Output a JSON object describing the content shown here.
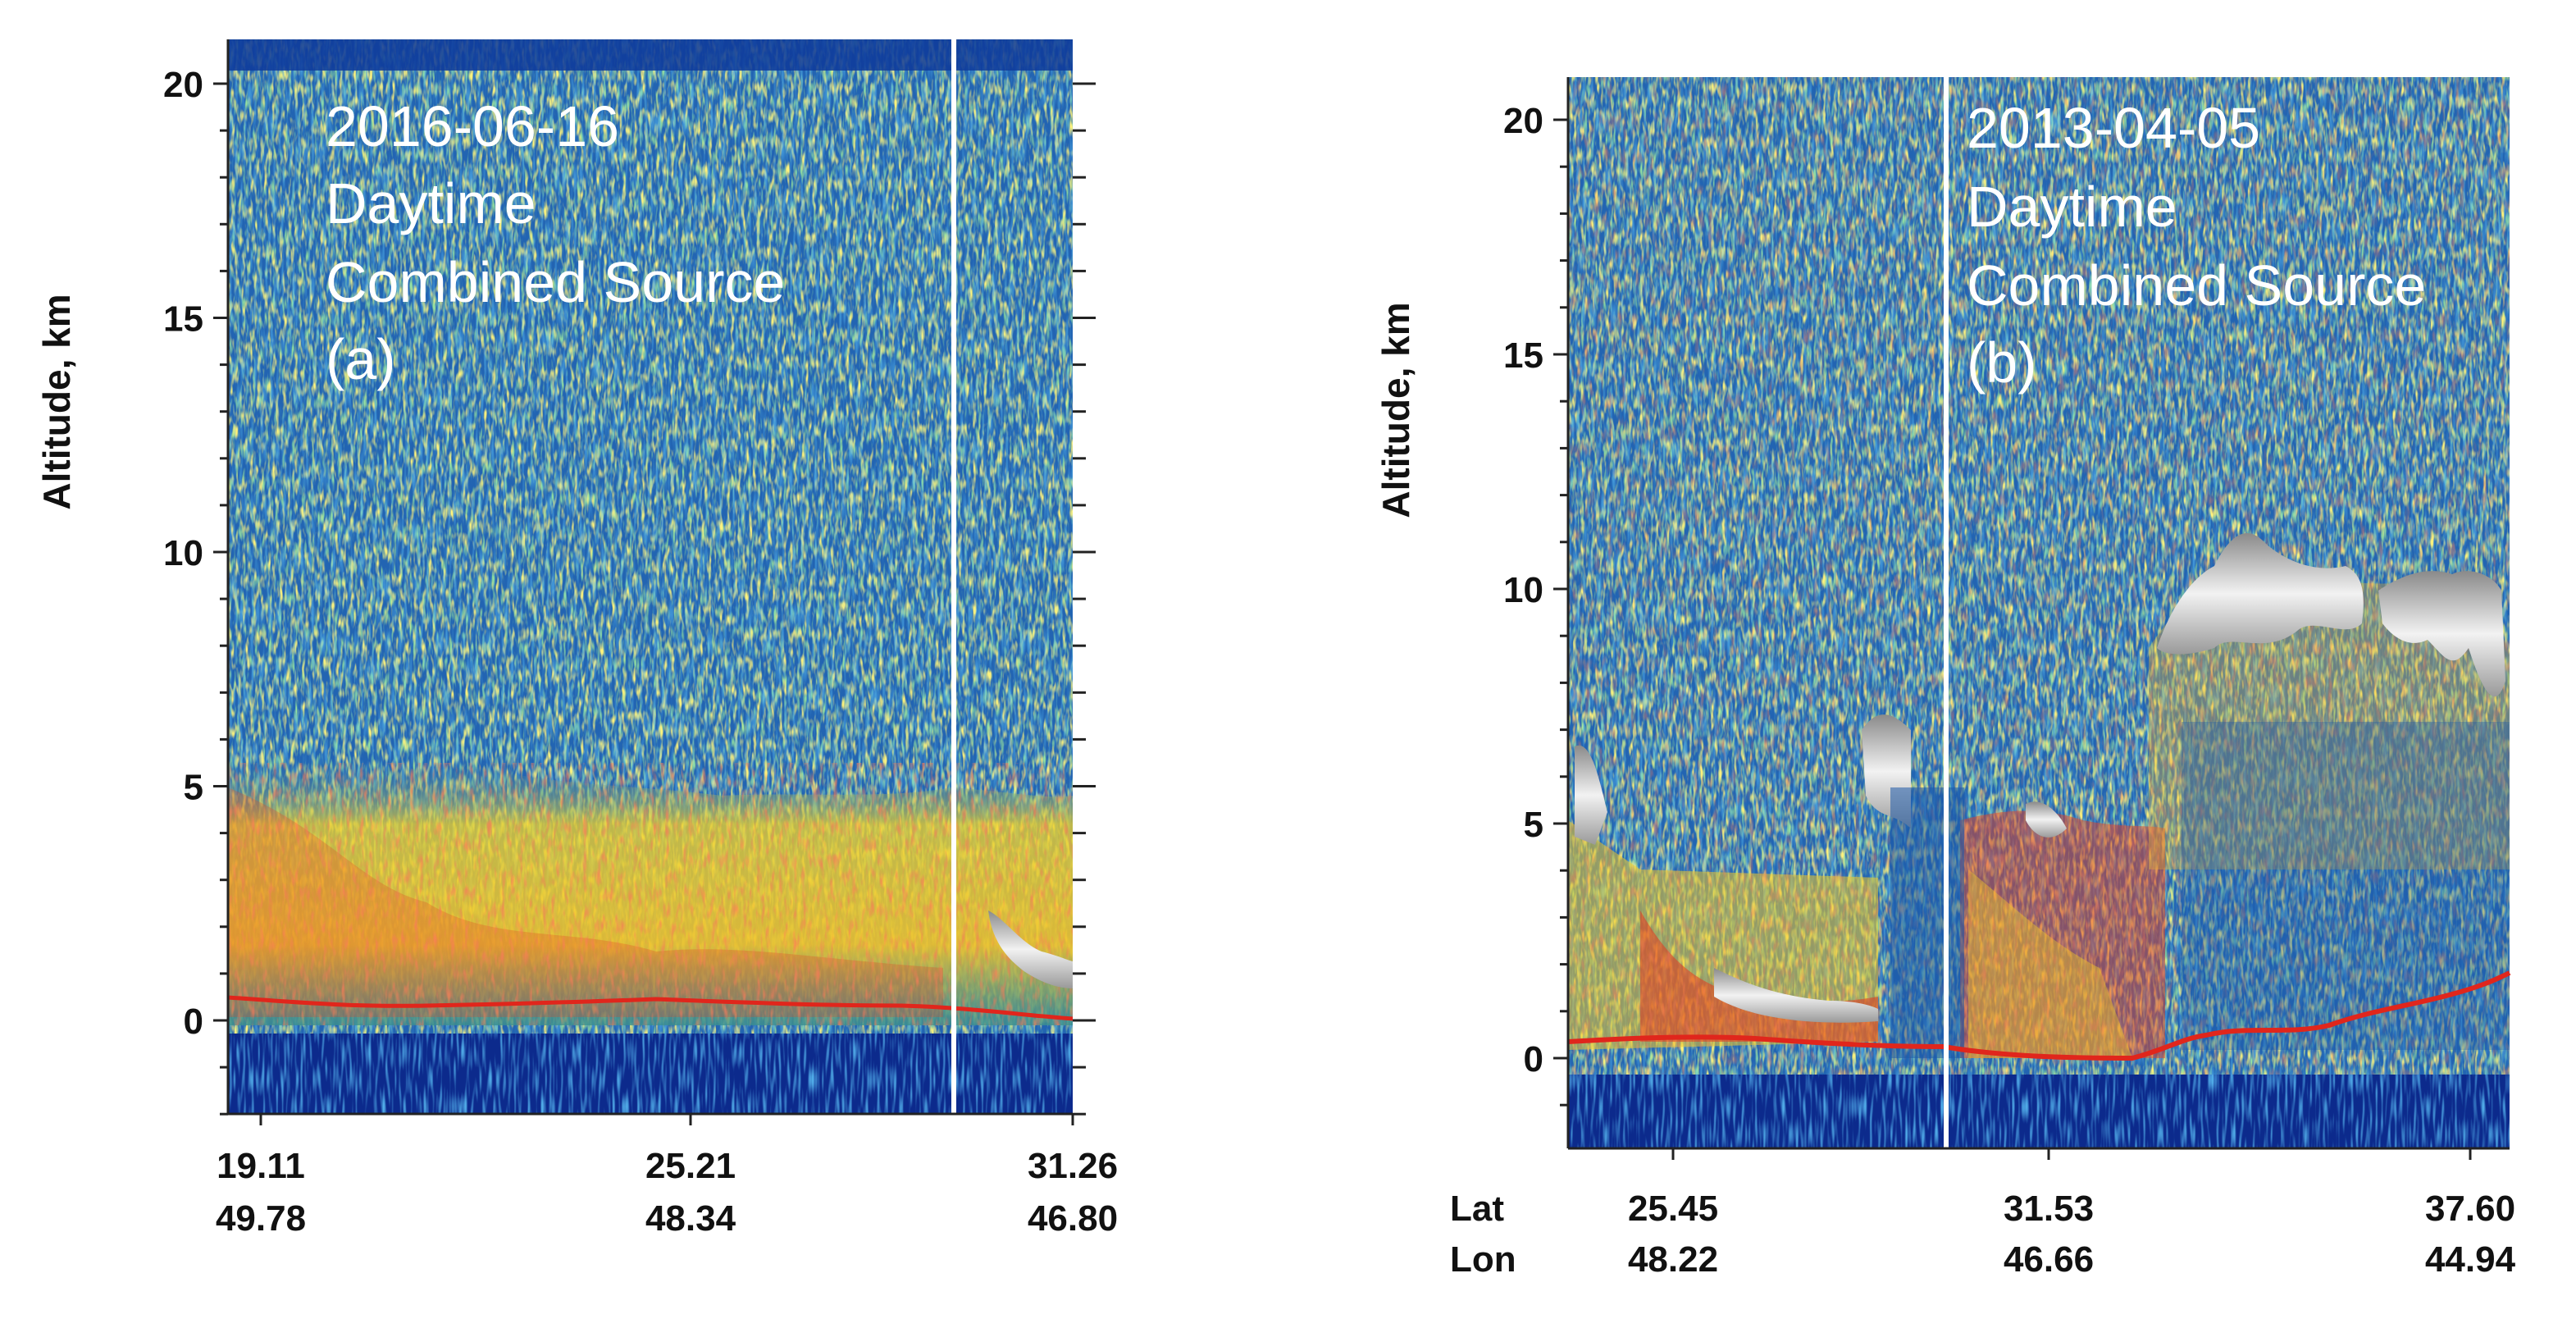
{
  "chart_data": [
    {
      "type": "heatmap",
      "panel": "a",
      "annotation": [
        "2016-06-16",
        "Daytime",
        "Combined Source",
        "(a)"
      ],
      "ylabel": "Altitude, km",
      "ylim": [
        -2,
        21
      ],
      "yticks": [
        "0",
        "5",
        "10",
        "15",
        "20"
      ],
      "xticks": [
        {
          "lat": "19.11",
          "lon": "49.78"
        },
        {
          "lat": "25.21",
          "lon": "48.34"
        },
        {
          "lat": "31.26",
          "lon": "46.80"
        }
      ],
      "row_labels": []
    },
    {
      "type": "heatmap",
      "panel": "b",
      "annotation": [
        "2013-04-05",
        "Daytime",
        "Combined Source",
        "(b)"
      ],
      "ylabel": "Altitude, km",
      "ylim": [
        -2,
        21
      ],
      "yticks": [
        "0",
        "5",
        "10",
        "15",
        "20"
      ],
      "xticks": [
        {
          "lat": "25.45",
          "lon": "48.22"
        },
        {
          "lat": "31.53",
          "lon": "46.66"
        },
        {
          "lat": "37.60",
          "lon": "44.94"
        }
      ],
      "row_labels": [
        "Lat",
        "Lon"
      ]
    }
  ],
  "colors": {
    "noise": [
      "#0a2f8a",
      "#1f5fb8",
      "#2c8fbf",
      "#49b06a",
      "#f0e130"
    ],
    "aerosol": [
      "#f0e130",
      "#f5a21e",
      "#e83a1f",
      "#3b8fb8"
    ],
    "cloud": "#d8d8d8",
    "surface_line": "#e0261c",
    "below_surface": "#0c2a8c"
  }
}
